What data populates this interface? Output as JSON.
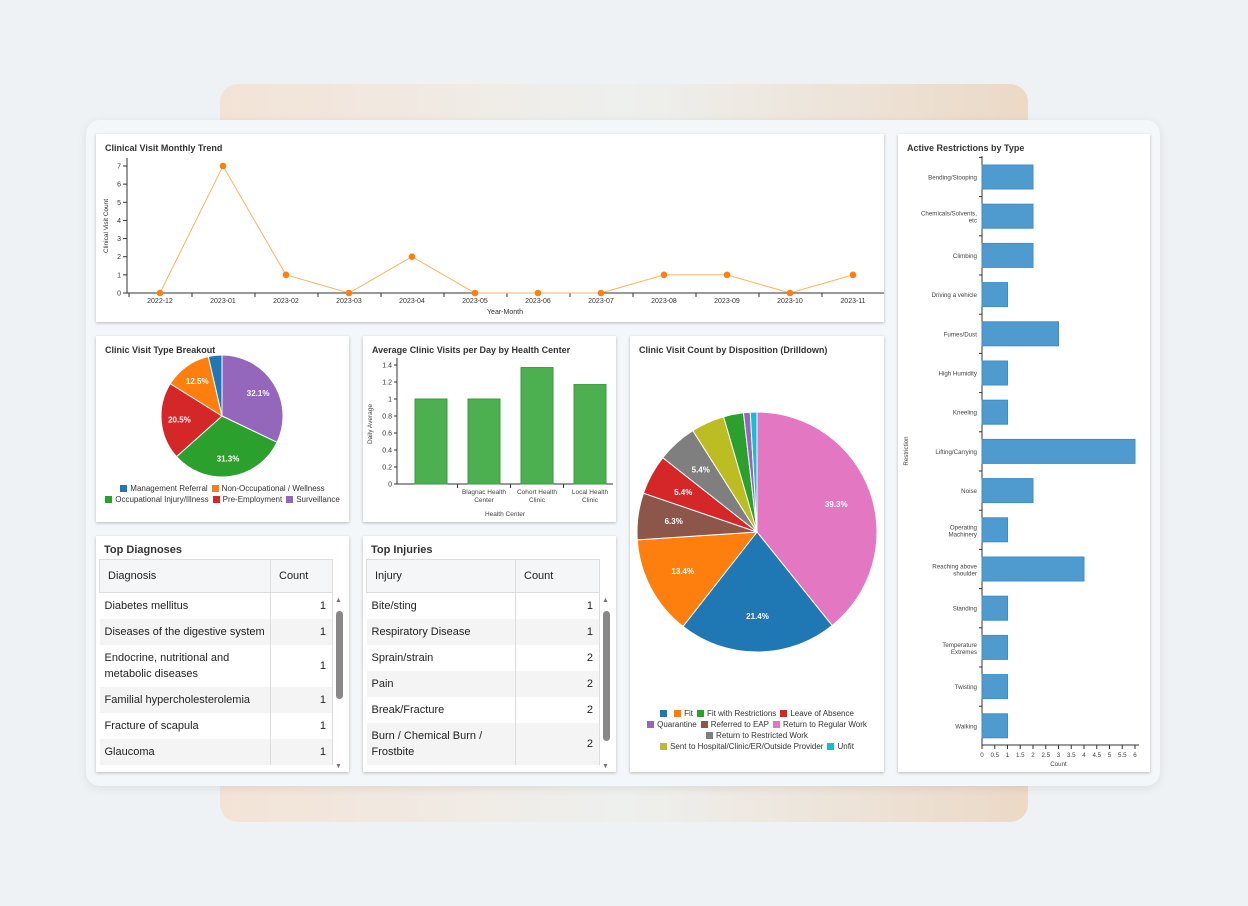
{
  "trend": {
    "title": "Clinical Visit Monthly Trend",
    "chart_data": {
      "type": "line",
      "xlabel": "Year-Month",
      "ylabel": "Clinical Visit Count",
      "x": [
        "2022-12",
        "2023-01",
        "2023-02",
        "2023-03",
        "2023-04",
        "2023-05",
        "2023-06",
        "2023-07",
        "2023-08",
        "2023-09",
        "2023-10",
        "2023-11"
      ],
      "values": [
        0,
        7,
        1,
        0,
        2,
        0,
        0,
        0,
        1,
        1,
        0,
        1
      ],
      "ylim": [
        0,
        7
      ],
      "yticks": [
        0,
        1,
        2,
        3,
        4,
        5,
        6,
        7
      ],
      "color": "#ff7f0e",
      "grid": false
    }
  },
  "visit_type": {
    "title": "Clinic Visit Type Breakout",
    "chart_data": {
      "type": "pie",
      "categories": [
        "Surveillance",
        "Occupational Injury/Illness",
        "Pre-Employment",
        "Non-Occupational / Wellness",
        "Management Referral"
      ],
      "values": [
        32.1,
        31.3,
        20.5,
        12.5,
        3.6
      ],
      "labels": [
        "32.1%",
        "31.3%",
        "20.5%",
        "12.5%",
        ""
      ],
      "colors": [
        "#9467bd",
        "#2ca02c",
        "#d62728",
        "#ff7f0e",
        "#1f77b4"
      ],
      "legend_order": [
        "Management Referral",
        "Non-Occupational / Wellness",
        "Occupational Injury/Illness",
        "Pre-Employment",
        "Surveillance"
      ],
      "legend_colors": [
        "#1f77b4",
        "#ff7f0e",
        "#2ca02c",
        "#d62728",
        "#9467bd"
      ],
      "legend_position": "bottom"
    }
  },
  "avg_visits": {
    "title": "Average Clinic Visits per Day by Health Center",
    "chart_data": {
      "type": "bar",
      "categories": [
        "",
        "Blagnac Health Center",
        "Cohort Health Clinic",
        "Local Health Clinic"
      ],
      "values": [
        1,
        1,
        1.37,
        1.17
      ],
      "xlabel": "Health Center",
      "ylabel": "Daily Average",
      "ylim": [
        0,
        1.4
      ],
      "yticks": [
        "0",
        "0.2",
        "0.4",
        "0.6",
        "0.8",
        "1",
        "1.2",
        "1.4"
      ],
      "color": "#4caf50"
    }
  },
  "disposition": {
    "title": "Clinic Visit Count by Disposition (Drilldown)",
    "chart_data": {
      "type": "pie",
      "categories": [
        "Return to Regular Work",
        "",
        "Fit",
        "Referred to EAP",
        "Leave of Absence",
        "Return to Restricted Work",
        "Sent to Hospital/Clinic/ER/Outside Provider",
        "Fit with Restrictions",
        "Quarantine",
        "Unfit"
      ],
      "values": [
        39.3,
        21.4,
        13.4,
        6.3,
        5.4,
        5.4,
        4.5,
        2.7,
        0.9,
        0.9
      ],
      "labels": [
        "39.3%",
        "21.4%",
        "13.4%",
        "6.3%",
        "5.4%",
        "5.4%",
        "",
        "",
        "",
        ""
      ],
      "colors": [
        "#e377c2",
        "#1f77b4",
        "#ff7f0e",
        "#8c564b",
        "#d62728",
        "#7f7f7f",
        "#bcbd22",
        "#2ca02c",
        "#9467bd",
        "#17becf"
      ],
      "legend": [
        {
          "label": "",
          "color": "#1f77b4"
        },
        {
          "label": "Fit",
          "color": "#ff7f0e"
        },
        {
          "label": "Fit with Restrictions",
          "color": "#2ca02c"
        },
        {
          "label": "Leave of Absence",
          "color": "#d62728"
        },
        {
          "label": "Quarantine",
          "color": "#9467bd"
        },
        {
          "label": "Referred to EAP",
          "color": "#8c564b"
        },
        {
          "label": "Return to Regular Work",
          "color": "#e377c2"
        },
        {
          "label": "Return to Restricted Work",
          "color": "#7f7f7f"
        },
        {
          "label": "Sent to Hospital/Clinic/ER/Outside Provider",
          "color": "#bcbd22"
        },
        {
          "label": "Unfit",
          "color": "#17becf"
        }
      ],
      "legend_position": "bottom"
    }
  },
  "restrictions": {
    "title": "Active Restrictions by Type",
    "chart_data": {
      "type": "bar",
      "orientation": "horizontal",
      "categories": [
        "Bending/Stooping",
        "Chemicals/Solvents, etc",
        "Climbing",
        "Driving a vehicle",
        "Fumes/Dust",
        "High Humidity",
        "Kneeling",
        "Lifting/Carrying",
        "Noise",
        "Operating Machinery",
        "Reaching above shoulder",
        "Standing",
        "Temperature Extremes",
        "Twisting",
        "Walking"
      ],
      "values": [
        2,
        2,
        2,
        1,
        3,
        1,
        1,
        6,
        2,
        1,
        4,
        1,
        1,
        1,
        1
      ],
      "xlabel": "Count",
      "ylabel": "Restriction",
      "xlim": [
        0,
        6
      ],
      "xticks": [
        "0",
        "0.5",
        "1",
        "1.5",
        "2",
        "2.5",
        "3",
        "3.5",
        "4",
        "4.5",
        "5",
        "5.5",
        "6"
      ],
      "color": "#4f9bcf"
    }
  },
  "diagnoses": {
    "title": "Top Diagnoses",
    "columns": [
      "Diagnosis",
      "Count"
    ],
    "rows": [
      [
        "Diabetes mellitus",
        "1"
      ],
      [
        "Diseases of the digestive system",
        "1"
      ],
      [
        "Endocrine, nutritional and metabolic diseases",
        "1"
      ],
      [
        "Familial hypercholesterolemia",
        "1"
      ],
      [
        "Fracture of scapula",
        "1"
      ],
      [
        "Glaucoma",
        "1"
      ]
    ]
  },
  "injuries": {
    "title": "Top Injuries",
    "columns": [
      "Injury",
      "Count"
    ],
    "rows": [
      [
        "Bite/sting",
        "1"
      ],
      [
        "Respiratory Disease",
        "1"
      ],
      [
        "Sprain/strain",
        "2"
      ],
      [
        "Pain",
        "2"
      ],
      [
        "Break/Fracture",
        "2"
      ],
      [
        "Burn / Chemical Burn / Frostbite",
        "2"
      ]
    ]
  }
}
